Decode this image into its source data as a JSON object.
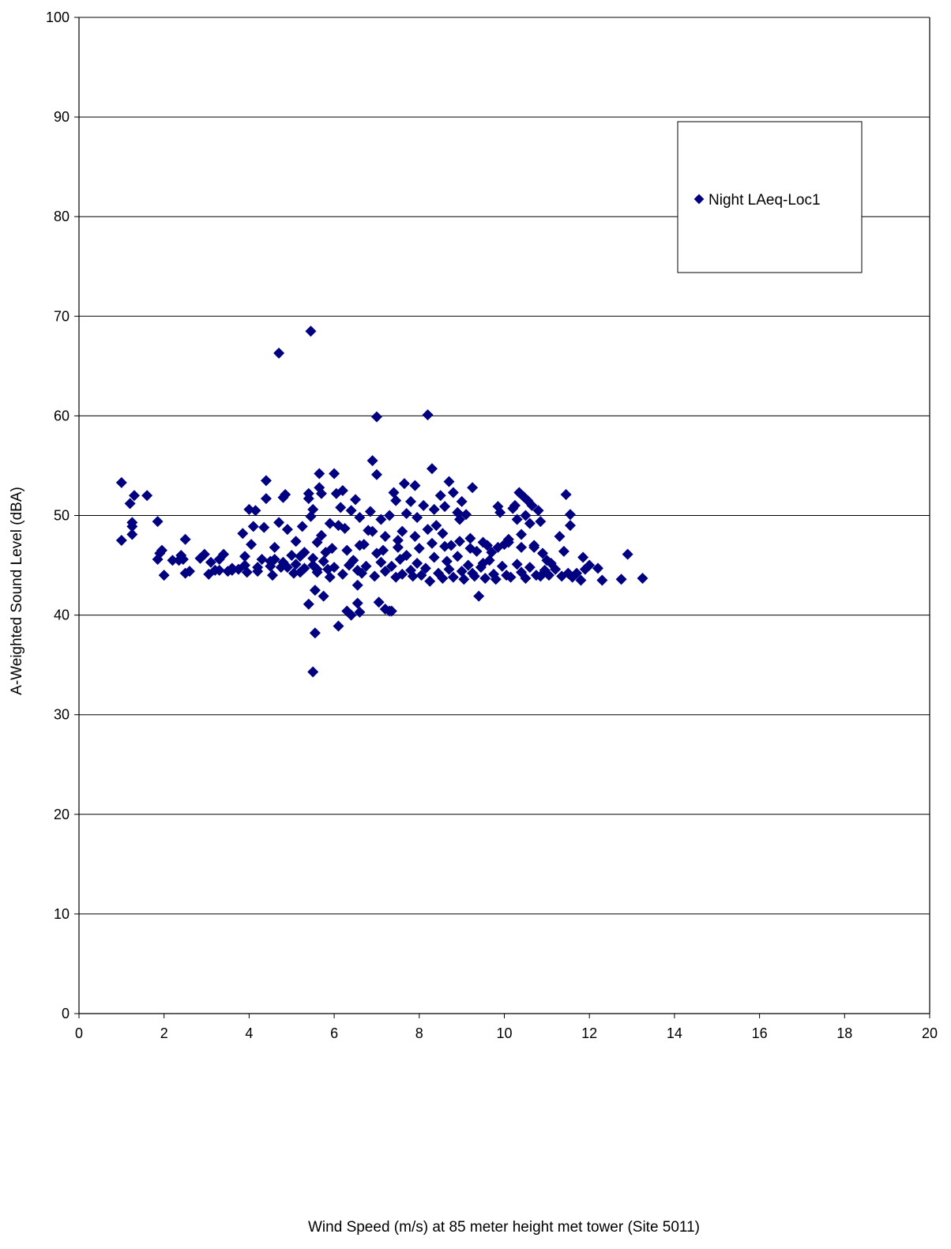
{
  "chart_data": {
    "type": "scatter",
    "title": "",
    "xlabel": "Wind Speed (m/s) at 85 meter height met tower (Site 5011)",
    "ylabel": "A-Weighted Sound Level (dBA)",
    "xlim": [
      0,
      20
    ],
    "ylim": [
      0,
      100
    ],
    "x_ticks": [
      "0",
      "2",
      "4",
      "6",
      "8",
      "10",
      "12",
      "14",
      "16",
      "18",
      "20"
    ],
    "y_ticks": [
      "0",
      "10",
      "20",
      "30",
      "40",
      "50",
      "60",
      "70",
      "80",
      "90",
      "100"
    ],
    "grid": "horizontal major gridlines",
    "legend_position": "top-right",
    "marker": "diamond",
    "marker_color": "#000080",
    "series": [
      {
        "name": "Night LAeq-Loc1",
        "points": [
          [
            1.0,
            53.3
          ],
          [
            1.0,
            47.5
          ],
          [
            1.2,
            51.2
          ],
          [
            1.3,
            52.0
          ],
          [
            1.25,
            49.3
          ],
          [
            1.25,
            48.9
          ],
          [
            1.25,
            48.1
          ],
          [
            1.6,
            52.0
          ],
          [
            1.85,
            49.4
          ],
          [
            1.9,
            46.2
          ],
          [
            1.85,
            45.6
          ],
          [
            1.95,
            46.5
          ],
          [
            2.0,
            44.0
          ],
          [
            2.2,
            45.5
          ],
          [
            2.35,
            45.5
          ],
          [
            2.4,
            46.0
          ],
          [
            2.5,
            44.2
          ],
          [
            2.5,
            47.6
          ],
          [
            2.6,
            44.4
          ],
          [
            2.45,
            45.6
          ],
          [
            2.85,
            45.7
          ],
          [
            2.95,
            46.1
          ],
          [
            3.05,
            44.1
          ],
          [
            3.1,
            45.3
          ],
          [
            3.2,
            44.5
          ],
          [
            3.3,
            45.6
          ],
          [
            3.4,
            46.1
          ],
          [
            3.5,
            44.4
          ],
          [
            3.6,
            44.7
          ],
          [
            3.75,
            44.6
          ],
          [
            3.85,
            48.2
          ],
          [
            3.9,
            45.9
          ],
          [
            3.95,
            44.3
          ],
          [
            4.0,
            50.6
          ],
          [
            4.05,
            47.1
          ],
          [
            4.1,
            48.9
          ],
          [
            4.15,
            50.5
          ],
          [
            4.2,
            44.4
          ],
          [
            4.3,
            45.6
          ],
          [
            4.35,
            48.8
          ],
          [
            4.4,
            51.7
          ],
          [
            4.4,
            53.5
          ],
          [
            4.5,
            45.4
          ],
          [
            4.55,
            44.0
          ],
          [
            4.6,
            46.8
          ],
          [
            4.7,
            49.3
          ],
          [
            4.75,
            44.8
          ],
          [
            4.8,
            51.8
          ],
          [
            4.85,
            52.1
          ],
          [
            4.9,
            48.6
          ],
          [
            5.0,
            46.0
          ],
          [
            5.05,
            44.2
          ],
          [
            5.1,
            47.4
          ],
          [
            5.2,
            45.9
          ],
          [
            5.25,
            48.9
          ],
          [
            5.3,
            44.7
          ],
          [
            5.4,
            52.2
          ],
          [
            5.4,
            51.7
          ],
          [
            5.45,
            49.9
          ],
          [
            5.5,
            50.6
          ],
          [
            5.5,
            45.7
          ],
          [
            5.6,
            44.3
          ],
          [
            5.6,
            47.3
          ],
          [
            5.65,
            54.2
          ],
          [
            5.65,
            52.8
          ],
          [
            5.7,
            48.0
          ],
          [
            5.7,
            52.2
          ],
          [
            5.75,
            45.4
          ],
          [
            5.8,
            46.3
          ],
          [
            5.85,
            44.6
          ],
          [
            5.9,
            49.2
          ],
          [
            5.95,
            46.7
          ],
          [
            6.0,
            54.2
          ],
          [
            6.05,
            52.2
          ],
          [
            6.1,
            49.0
          ],
          [
            6.15,
            50.8
          ],
          [
            6.2,
            52.5
          ],
          [
            6.25,
            48.7
          ],
          [
            6.3,
            46.5
          ],
          [
            6.35,
            45.0
          ],
          [
            6.4,
            50.5
          ],
          [
            6.5,
            51.6
          ],
          [
            6.55,
            44.5
          ],
          [
            6.6,
            49.8
          ],
          [
            6.7,
            47.1
          ],
          [
            6.8,
            48.5
          ],
          [
            6.85,
            50.4
          ],
          [
            6.9,
            55.5
          ],
          [
            7.0,
            54.1
          ],
          [
            7.0,
            46.2
          ],
          [
            7.1,
            49.6
          ],
          [
            7.2,
            47.9
          ],
          [
            7.3,
            50.0
          ],
          [
            7.4,
            52.3
          ],
          [
            7.45,
            51.5
          ],
          [
            7.5,
            46.8
          ],
          [
            7.6,
            48.4
          ],
          [
            7.65,
            53.2
          ],
          [
            7.7,
            50.2
          ],
          [
            7.8,
            51.4
          ],
          [
            7.9,
            53.0
          ],
          [
            7.95,
            49.8
          ],
          [
            8.0,
            46.7
          ],
          [
            8.1,
            51.0
          ],
          [
            8.2,
            48.6
          ],
          [
            8.3,
            54.7
          ],
          [
            8.35,
            50.6
          ],
          [
            8.4,
            49.0
          ],
          [
            8.5,
            52.0
          ],
          [
            8.55,
            48.2
          ],
          [
            8.6,
            50.9
          ],
          [
            8.7,
            53.4
          ],
          [
            8.75,
            47.0
          ],
          [
            8.8,
            52.3
          ],
          [
            8.9,
            50.3
          ],
          [
            8.95,
            49.6
          ],
          [
            9.0,
            51.4
          ],
          [
            9.1,
            50.1
          ],
          [
            9.2,
            47.7
          ],
          [
            9.25,
            52.8
          ],
          [
            9.35,
            46.4
          ],
          [
            9.5,
            45.2
          ],
          [
            9.6,
            47.0
          ],
          [
            9.7,
            46.3
          ],
          [
            9.85,
            50.9
          ],
          [
            9.9,
            50.3
          ],
          [
            10.0,
            47.1
          ],
          [
            10.1,
            47.6
          ],
          [
            10.2,
            50.7
          ],
          [
            10.25,
            51.0
          ],
          [
            10.3,
            49.6
          ],
          [
            10.35,
            52.3
          ],
          [
            10.4,
            48.1
          ],
          [
            10.45,
            51.9
          ],
          [
            10.5,
            50.0
          ],
          [
            10.55,
            51.5
          ],
          [
            10.6,
            49.2
          ],
          [
            10.65,
            51.0
          ],
          [
            10.7,
            46.8
          ],
          [
            10.8,
            50.5
          ],
          [
            10.85,
            49.4
          ],
          [
            10.9,
            46.2
          ],
          [
            11.0,
            45.5
          ],
          [
            11.1,
            45.2
          ],
          [
            11.3,
            47.9
          ],
          [
            11.4,
            46.4
          ],
          [
            11.45,
            52.1
          ],
          [
            11.55,
            50.1
          ],
          [
            11.55,
            49.0
          ],
          [
            11.7,
            44.2
          ],
          [
            11.85,
            45.8
          ],
          [
            11.9,
            44.6
          ],
          [
            12.0,
            45.0
          ],
          [
            12.2,
            44.7
          ],
          [
            12.3,
            43.5
          ],
          [
            12.75,
            43.6
          ],
          [
            12.9,
            46.1
          ],
          [
            13.25,
            43.7
          ],
          [
            4.7,
            66.3
          ],
          [
            5.45,
            68.5
          ],
          [
            7.0,
            59.9
          ],
          [
            8.2,
            60.1
          ],
          [
            5.4,
            41.1
          ],
          [
            5.55,
            42.5
          ],
          [
            5.75,
            41.9
          ],
          [
            5.55,
            38.2
          ],
          [
            5.5,
            34.3
          ],
          [
            6.1,
            38.9
          ],
          [
            6.3,
            40.4
          ],
          [
            6.4,
            40.0
          ],
          [
            6.55,
            41.2
          ],
          [
            6.6,
            40.3
          ],
          [
            6.55,
            43.0
          ],
          [
            7.05,
            41.3
          ],
          [
            7.2,
            40.6
          ],
          [
            7.3,
            40.4
          ],
          [
            7.35,
            40.4
          ],
          [
            9.4,
            41.9
          ],
          [
            4.5,
            44.9
          ],
          [
            4.8,
            45.3
          ],
          [
            5.1,
            45.1
          ],
          [
            5.3,
            46.3
          ],
          [
            5.6,
            44.6
          ],
          [
            5.9,
            43.8
          ],
          [
            6.0,
            44.8
          ],
          [
            6.2,
            44.1
          ],
          [
            6.45,
            45.5
          ],
          [
            6.65,
            44.2
          ],
          [
            6.75,
            44.9
          ],
          [
            6.95,
            43.9
          ],
          [
            7.1,
            45.3
          ],
          [
            7.2,
            44.4
          ],
          [
            7.35,
            44.9
          ],
          [
            7.45,
            43.8
          ],
          [
            7.55,
            45.6
          ],
          [
            7.6,
            44.1
          ],
          [
            7.7,
            46.0
          ],
          [
            7.8,
            44.5
          ],
          [
            7.85,
            43.9
          ],
          [
            7.95,
            45.2
          ],
          [
            8.05,
            44.0
          ],
          [
            8.15,
            44.7
          ],
          [
            8.25,
            43.4
          ],
          [
            8.35,
            45.8
          ],
          [
            8.45,
            44.2
          ],
          [
            8.55,
            43.7
          ],
          [
            8.65,
            45.4
          ],
          [
            8.7,
            44.6
          ],
          [
            8.8,
            43.8
          ],
          [
            8.9,
            45.9
          ],
          [
            9.0,
            44.4
          ],
          [
            9.05,
            43.6
          ],
          [
            9.15,
            45.0
          ],
          [
            9.25,
            44.2
          ],
          [
            9.3,
            43.9
          ],
          [
            9.45,
            44.8
          ],
          [
            9.55,
            43.7
          ],
          [
            9.65,
            45.5
          ],
          [
            9.75,
            44.1
          ],
          [
            9.8,
            43.6
          ],
          [
            9.95,
            44.9
          ],
          [
            10.05,
            44.0
          ],
          [
            10.15,
            43.8
          ],
          [
            10.3,
            45.1
          ],
          [
            10.4,
            44.3
          ],
          [
            10.5,
            43.7
          ],
          [
            10.6,
            44.8
          ],
          [
            10.75,
            44.0
          ],
          [
            10.85,
            43.9
          ],
          [
            10.95,
            44.5
          ],
          [
            11.05,
            44.0
          ],
          [
            11.2,
            44.6
          ],
          [
            11.35,
            43.9
          ],
          [
            11.5,
            44.2
          ],
          [
            11.6,
            43.8
          ],
          [
            11.8,
            43.5
          ],
          [
            7.5,
            47.5
          ],
          [
            7.9,
            47.9
          ],
          [
            8.3,
            47.2
          ],
          [
            8.6,
            46.9
          ],
          [
            8.95,
            47.4
          ],
          [
            9.2,
            46.7
          ],
          [
            9.5,
            47.3
          ],
          [
            9.85,
            46.8
          ],
          [
            10.1,
            47.3
          ],
          [
            10.4,
            46.8
          ],
          [
            10.7,
            47.0
          ],
          [
            6.6,
            47.0
          ],
          [
            6.9,
            48.4
          ],
          [
            7.15,
            46.5
          ],
          [
            5.5,
            45.0
          ],
          [
            5.2,
            44.3
          ],
          [
            4.9,
            44.8
          ],
          [
            4.6,
            45.6
          ],
          [
            4.2,
            44.8
          ],
          [
            3.9,
            45.0
          ],
          [
            3.6,
            44.5
          ],
          [
            3.3,
            44.5
          ]
        ]
      }
    ]
  }
}
